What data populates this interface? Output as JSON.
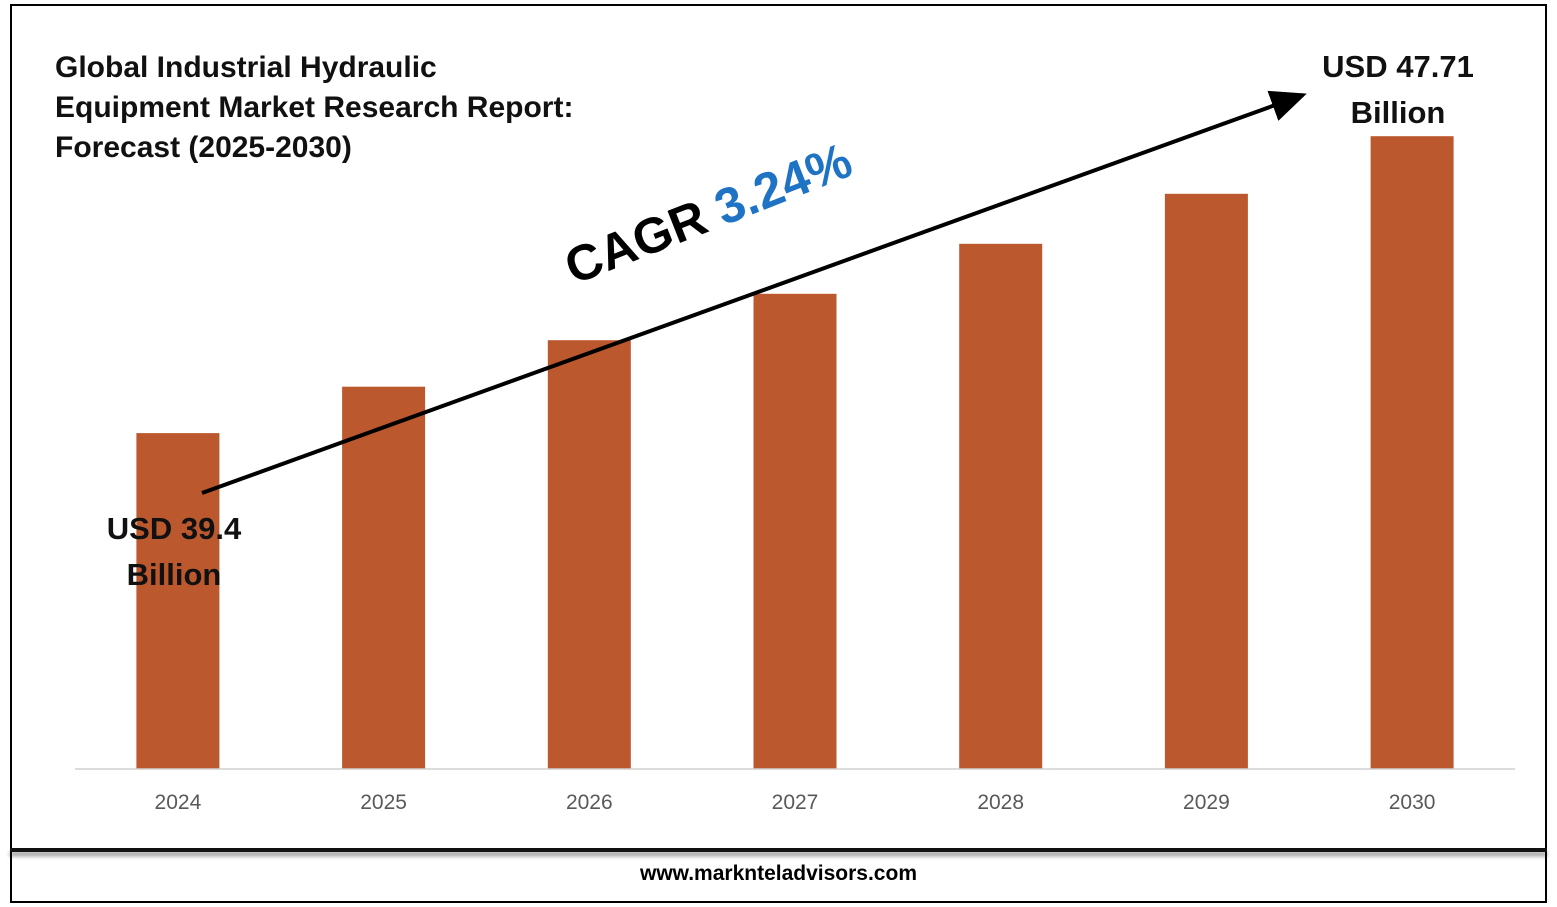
{
  "footer": {
    "url": "www.marknteladvisors.com"
  },
  "annotations": {
    "cagr_label": "CAGR",
    "cagr_value": "3.24%",
    "start_line1": "USD 39.4",
    "start_line2": "Billion",
    "end_line1": "USD 47.71",
    "end_line2": "Billion"
  },
  "colors": {
    "bar": "#bc582d",
    "accent": "#1f73c5",
    "axis": "#d0d0d0",
    "tick_text": "#595959"
  },
  "chart_data": {
    "type": "bar",
    "title_lines": [
      "Global Industrial Hydraulic",
      "Equipment Market Research Report:",
      "Forecast (2025-2030)"
    ],
    "categories": [
      "2024",
      "2025",
      "2026",
      "2027",
      "2028",
      "2029",
      "2030"
    ],
    "values": [
      39.4,
      40.7,
      42.0,
      43.3,
      44.7,
      46.1,
      47.71
    ],
    "unit": "USD Billion",
    "xlabel": "",
    "ylabel": "",
    "ylim": [
      30,
      48.5
    ],
    "y_axis_visible": false,
    "grid": false,
    "legend": "none"
  }
}
